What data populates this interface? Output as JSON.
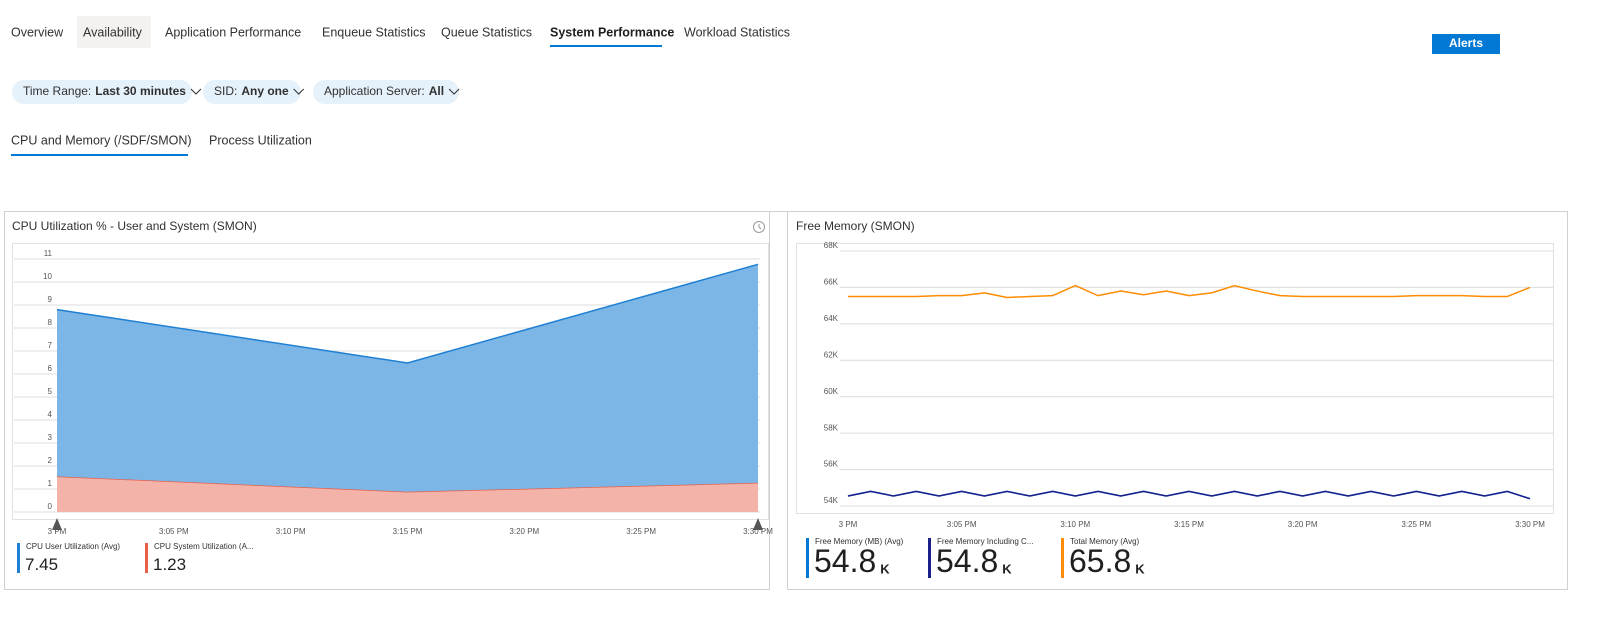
{
  "tabs": [
    "Overview",
    "Availability",
    "Application Performance",
    "Enqueue Statistics",
    "Queue Statistics",
    "System Performance",
    "Workload Statistics"
  ],
  "alerts_button": "Alerts",
  "filters": [
    {
      "label": "Time Range:",
      "value": "Last 30 minutes"
    },
    {
      "label": "SID:",
      "value": "Any one"
    },
    {
      "label": "Application Server:",
      "value": "All"
    }
  ],
  "subtabs": [
    "CPU and Memory (/SDF/SMON)",
    "Process Utilization"
  ],
  "chart_data": [
    {
      "type": "area",
      "stacked": true,
      "title": "CPU Utilization % - User and System (SMON)",
      "x": [
        "3 PM",
        "3:15 PM",
        "3:30 PM"
      ],
      "xlim": [
        "3 PM",
        "3:30 PM"
      ],
      "xticks": [
        "3 PM",
        "3:05 PM",
        "3:10 PM",
        "3:15 PM",
        "3:20 PM",
        "3:25 PM",
        "3:30 PM"
      ],
      "ylim": [
        0,
        11
      ],
      "yticks": [
        0,
        1,
        2,
        3,
        4,
        5,
        6,
        7,
        8,
        9,
        10,
        11
      ],
      "grid": true,
      "series": [
        {
          "name": "CPU User Utilization (Avg)",
          "color": "#1e7fd3",
          "fill": "#7cb6e6",
          "values": [
            7.25,
            5.6,
            9.5
          ],
          "summary": 7.45
        },
        {
          "name": "CPU System Utilization (A...",
          "color": "#e8604c",
          "fill": "#f4b3a8",
          "values": [
            1.55,
            0.88,
            1.27
          ],
          "summary": 1.23
        }
      ]
    },
    {
      "type": "line",
      "title": "Free Memory (SMON)",
      "x": [
        "3 PM",
        "3:01 PM",
        "3:02 PM",
        "3:03 PM",
        "3:04 PM",
        "3:05 PM",
        "3:06 PM",
        "3:07 PM",
        "3:08 PM",
        "3:09 PM",
        "3:10 PM",
        "3:11 PM",
        "3:12 PM",
        "3:13 PM",
        "3:14 PM",
        "3:15 PM",
        "3:16 PM",
        "3:17 PM",
        "3:18 PM",
        "3:19 PM",
        "3:20 PM",
        "3:21 PM",
        "3:22 PM",
        "3:23 PM",
        "3:24 PM",
        "3:25 PM",
        "3:26 PM",
        "3:27 PM",
        "3:28 PM",
        "3:29 PM",
        "3:30 PM"
      ],
      "xlim": [
        "3 PM",
        "3:30 PM"
      ],
      "xticks": [
        "3 PM",
        "3:05 PM",
        "3:10 PM",
        "3:15 PM",
        "3:20 PM",
        "3:25 PM",
        "3:30 PM"
      ],
      "ylim": [
        54000,
        68000
      ],
      "yticks": [
        {
          "value": 54000,
          "label": "54K"
        },
        {
          "value": 56000,
          "label": "56K"
        },
        {
          "value": 58000,
          "label": "58K"
        },
        {
          "value": 60000,
          "label": "60K"
        },
        {
          "value": 62000,
          "label": "62K"
        },
        {
          "value": 64000,
          "label": "64K"
        },
        {
          "value": 66000,
          "label": "66K"
        },
        {
          "value": 68000,
          "label": "68K"
        }
      ],
      "grid": true,
      "series": [
        {
          "name": "Free Memory (MB) (Avg)",
          "color": "#0078d4",
          "values": [
            54550,
            54800,
            54550,
            54800,
            54550,
            54800,
            54550,
            54800,
            54550,
            54800,
            54550,
            54800,
            54550,
            54800,
            54550,
            54800,
            54550,
            54800,
            54550,
            54800,
            54550,
            54800,
            54550,
            54800,
            54550,
            54800,
            54550,
            54800,
            54550,
            54800,
            54400
          ],
          "summary": {
            "value": 54800,
            "label": "54.8",
            "unit": "K"
          }
        },
        {
          "name": "Free Memory Including C...",
          "color": "#1a1f8a",
          "values": [
            54550,
            54800,
            54550,
            54800,
            54550,
            54800,
            54550,
            54800,
            54550,
            54800,
            54550,
            54800,
            54550,
            54800,
            54550,
            54800,
            54550,
            54800,
            54550,
            54800,
            54550,
            54800,
            54550,
            54800,
            54550,
            54800,
            54550,
            54800,
            54550,
            54800,
            54400
          ],
          "summary": {
            "value": 54800,
            "label": "54.8",
            "unit": "K"
          }
        },
        {
          "name": "Total Memory (Avg)",
          "color": "#ff8c00",
          "values": [
            65500,
            65500,
            65500,
            65500,
            65550,
            65550,
            65700,
            65450,
            65500,
            65550,
            66100,
            65550,
            65800,
            65600,
            65800,
            65550,
            65700,
            66100,
            65800,
            65550,
            65500,
            65500,
            65500,
            65500,
            65500,
            65550,
            65550,
            65550,
            65500,
            65500,
            66000
          ],
          "summary": {
            "value": 65800,
            "label": "65.8",
            "unit": "K"
          }
        }
      ]
    }
  ]
}
